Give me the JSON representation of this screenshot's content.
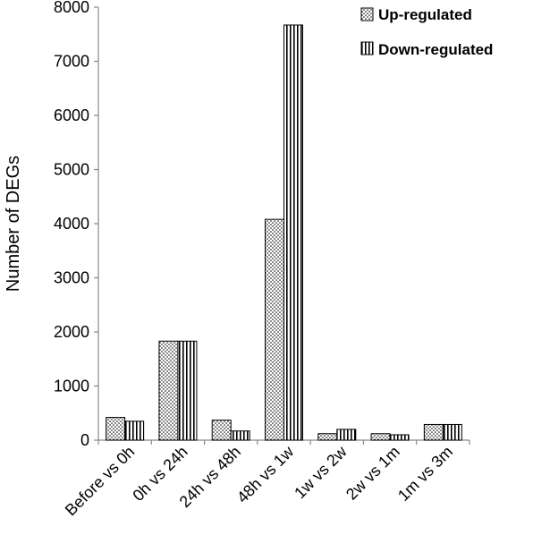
{
  "chart_data": {
    "type": "bar",
    "title": "",
    "xlabel": "",
    "ylabel": "Number of DEGs",
    "ylim": [
      0,
      8000
    ],
    "yticks": [
      0,
      1000,
      2000,
      3000,
      4000,
      5000,
      6000,
      7000,
      8000
    ],
    "categories": [
      "Before vs 0h",
      "0h vs 24h",
      "24h vs 48h",
      "48h vs 1w",
      "1w vs 2w",
      "2w vs 1m",
      "1m vs 3m"
    ],
    "series": [
      {
        "name": "Up-regulated",
        "pattern": "dots",
        "values": [
          420,
          1830,
          370,
          4080,
          120,
          120,
          290
        ]
      },
      {
        "name": "Down-regulated",
        "pattern": "vertical-stripes",
        "values": [
          350,
          1830,
          170,
          7670,
          200,
          100,
          290
        ]
      }
    ],
    "grid": false,
    "legend_position": "top-right",
    "colors": {
      "bar_fill": "#ffffff",
      "ink": "#000000"
    }
  }
}
